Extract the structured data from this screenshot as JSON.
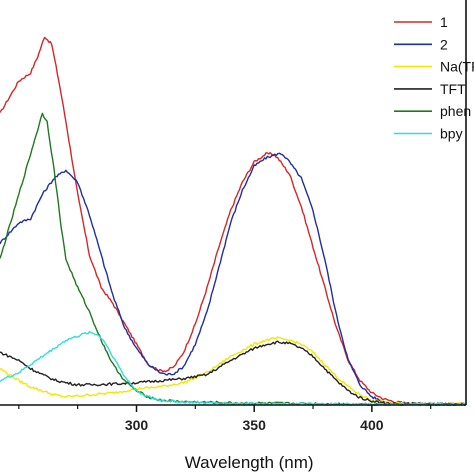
{
  "chart_data": {
    "type": "line",
    "xlabel": "Wavelength (nm)",
    "ylabel": "",
    "xlim": [
      242,
      440
    ],
    "ylim": [
      0,
      1.0
    ],
    "xticks": [
      300,
      350,
      400
    ],
    "legend_placement": "top-right",
    "series": [
      {
        "name": "1",
        "color": "#d62728",
        "x": [
          242,
          250,
          255,
          258,
          261,
          264,
          267,
          270,
          275,
          280,
          285,
          290,
          295,
          300,
          305,
          310,
          313,
          316,
          320,
          325,
          330,
          335,
          340,
          345,
          350,
          355,
          358,
          360,
          365,
          370,
          375,
          380,
          385,
          390,
          395,
          400,
          405,
          410,
          415,
          420,
          430,
          440
        ],
        "y": [
          0.72,
          0.8,
          0.82,
          0.86,
          0.91,
          0.89,
          0.8,
          0.7,
          0.52,
          0.37,
          0.29,
          0.25,
          0.2,
          0.15,
          0.1,
          0.085,
          0.085,
          0.095,
          0.13,
          0.2,
          0.29,
          0.39,
          0.48,
          0.55,
          0.6,
          0.62,
          0.62,
          0.61,
          0.57,
          0.49,
          0.39,
          0.29,
          0.19,
          0.11,
          0.06,
          0.03,
          0.015,
          0.008,
          0.004,
          0.003,
          0.002,
          0.002
        ]
      },
      {
        "name": "2",
        "color": "#1f2fa0",
        "x": [
          242,
          250,
          255,
          260,
          265,
          270,
          275,
          280,
          285,
          290,
          295,
          300,
          305,
          310,
          313,
          316,
          320,
          325,
          330,
          335,
          340,
          345,
          350,
          355,
          360,
          362,
          365,
          370,
          375,
          380,
          385,
          390,
          395,
          400,
          405,
          410,
          415,
          420,
          430,
          440
        ],
        "y": [
          0.4,
          0.45,
          0.46,
          0.52,
          0.56,
          0.58,
          0.55,
          0.47,
          0.37,
          0.27,
          0.19,
          0.14,
          0.1,
          0.08,
          0.075,
          0.078,
          0.095,
          0.15,
          0.23,
          0.34,
          0.45,
          0.53,
          0.59,
          0.61,
          0.62,
          0.62,
          0.6,
          0.56,
          0.48,
          0.36,
          0.22,
          0.11,
          0.05,
          0.02,
          0.008,
          0.004,
          0.003,
          0.002,
          0.002,
          0.002
        ]
      },
      {
        "name": "Na(TFT)",
        "color": "#f2e600",
        "x": [
          242,
          250,
          255,
          260,
          265,
          270,
          280,
          290,
          300,
          310,
          320,
          330,
          340,
          350,
          355,
          360,
          365,
          370,
          375,
          380,
          385,
          390,
          395,
          400,
          405,
          410,
          420,
          430,
          440
        ],
        "y": [
          0.09,
          0.06,
          0.045,
          0.035,
          0.025,
          0.02,
          0.025,
          0.03,
          0.04,
          0.045,
          0.055,
          0.08,
          0.12,
          0.15,
          0.16,
          0.165,
          0.16,
          0.15,
          0.13,
          0.1,
          0.07,
          0.045,
          0.025,
          0.012,
          0.007,
          0.004,
          0.003,
          0.003,
          0.002
        ]
      },
      {
        "name": "TFT",
        "color": "#222222",
        "x": [
          242,
          250,
          255,
          260,
          265,
          270,
          275,
          280,
          290,
          300,
          310,
          320,
          330,
          340,
          350,
          355,
          360,
          365,
          370,
          375,
          380,
          385,
          390,
          395,
          400,
          405,
          410,
          420,
          430,
          440
        ],
        "y": [
          0.13,
          0.11,
          0.09,
          0.075,
          0.062,
          0.055,
          0.05,
          0.05,
          0.052,
          0.055,
          0.06,
          0.065,
          0.075,
          0.11,
          0.14,
          0.15,
          0.155,
          0.152,
          0.14,
          0.12,
          0.09,
          0.06,
          0.035,
          0.018,
          0.01,
          0.005,
          0.003,
          0.003,
          0.002,
          0.002
        ]
      },
      {
        "name": "phen",
        "color": "#1e7a1e",
        "x": [
          242,
          250,
          255,
          258,
          260,
          262,
          265,
          268,
          270,
          275,
          280,
          285,
          290,
          295,
          300,
          305,
          310,
          320,
          340,
          360,
          380,
          400,
          420,
          440
        ],
        "y": [
          0.36,
          0.52,
          0.62,
          0.68,
          0.72,
          0.7,
          0.58,
          0.44,
          0.36,
          0.29,
          0.23,
          0.16,
          0.1,
          0.06,
          0.035,
          0.02,
          0.012,
          0.008,
          0.005,
          0.004,
          0.003,
          0.002,
          0.002,
          0.002
        ]
      },
      {
        "name": "bpy",
        "color": "#33dddd",
        "x": [
          242,
          250,
          255,
          260,
          265,
          270,
          275,
          280,
          283,
          286,
          290,
          295,
          300,
          305,
          310,
          320,
          340,
          360,
          380,
          400,
          420,
          440
        ],
        "y": [
          0.06,
          0.08,
          0.1,
          0.12,
          0.14,
          0.16,
          0.17,
          0.18,
          0.175,
          0.16,
          0.12,
          0.07,
          0.035,
          0.02,
          0.012,
          0.007,
          0.004,
          0.003,
          0.002,
          0.002,
          0.002,
          0.002
        ]
      }
    ]
  }
}
